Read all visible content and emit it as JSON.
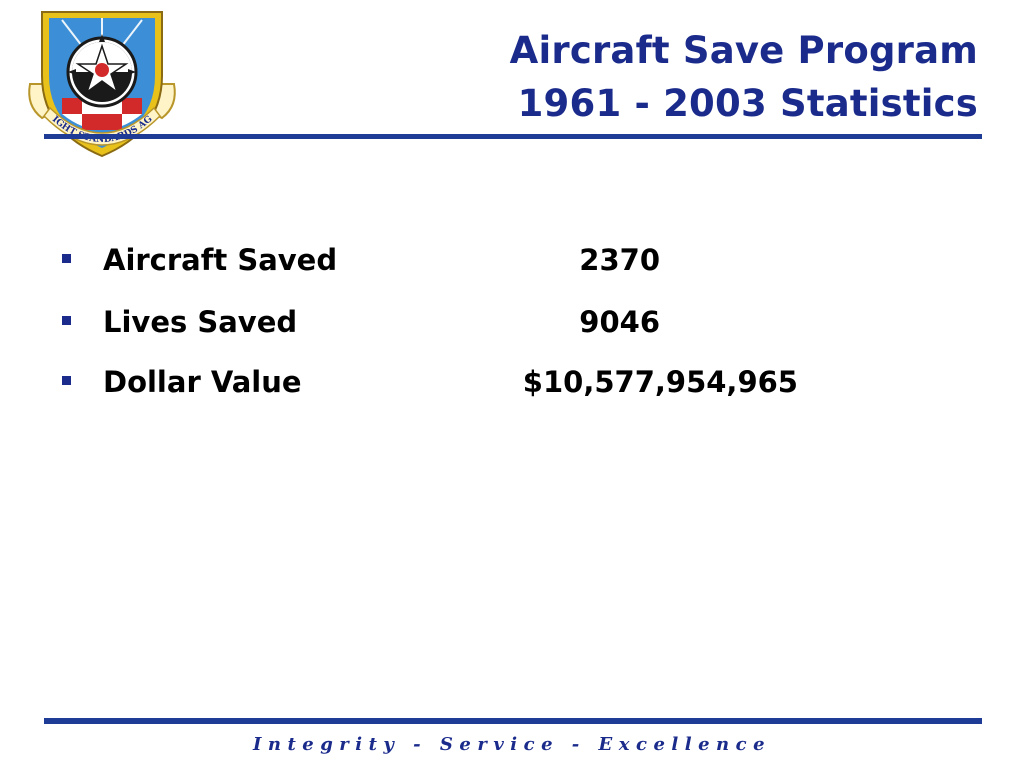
{
  "title": {
    "line1": "Aircraft Save Program",
    "line2": "1961 - 2003 Statistics"
  },
  "logo": {
    "text": "AF FLIGHT STANDARDS AGENCY",
    "colors": {
      "shield_blue": "#3c8fd6",
      "gold": "#e8c21a",
      "red": "#d22a2a",
      "navy": "#1a2b8c"
    }
  },
  "bullets": [
    {
      "label": "Aircraft Saved",
      "value": "2370"
    },
    {
      "label": "Lives Saved",
      "value": "9046"
    },
    {
      "label": "Dollar Value",
      "value": "$10,577,954,965"
    }
  ],
  "footer": {
    "motto": "Integrity - Service - Excellence"
  },
  "colors": {
    "accent": "#1a2b8c",
    "rule": "#1e3c96"
  }
}
